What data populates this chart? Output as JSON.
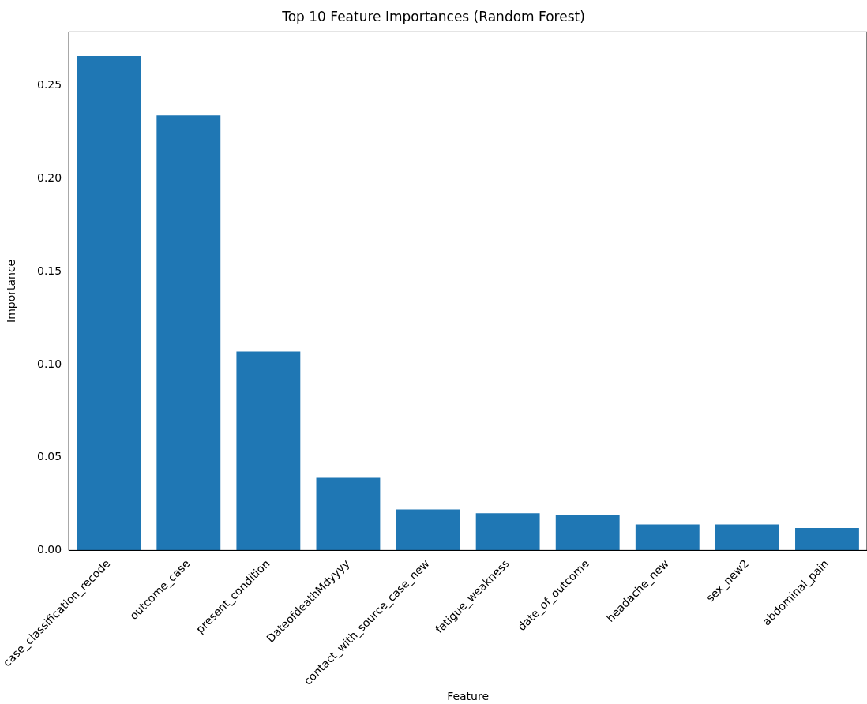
{
  "chart_data": {
    "type": "bar",
    "title": "Top 10 Feature Importances (Random Forest)",
    "xlabel": "Feature",
    "ylabel": "Importance",
    "categories": [
      "case_classification_recode",
      "outcome_case",
      "present_condition",
      "DateofdeathMdyyyy",
      "contact_with_source_case_new",
      "fatigue_weakness",
      "date_of_outcome",
      "headache_new",
      "sex_new2",
      "abdominal_pain"
    ],
    "values": [
      0.266,
      0.234,
      0.107,
      0.039,
      0.022,
      0.02,
      0.019,
      0.014,
      0.014,
      0.012
    ],
    "color": "#1f77b4",
    "ylim": [
      0,
      0.279
    ],
    "yticks": [
      {
        "value": 0,
        "label": "0.00"
      },
      {
        "value": 0.05,
        "label": "0.05"
      },
      {
        "value": 0.1,
        "label": "0.10"
      },
      {
        "value": 0.15,
        "label": "0.15"
      },
      {
        "value": 0.2,
        "label": "0.20"
      },
      {
        "value": 0.25,
        "label": "0.25"
      }
    ],
    "grid": false,
    "legend": false
  }
}
